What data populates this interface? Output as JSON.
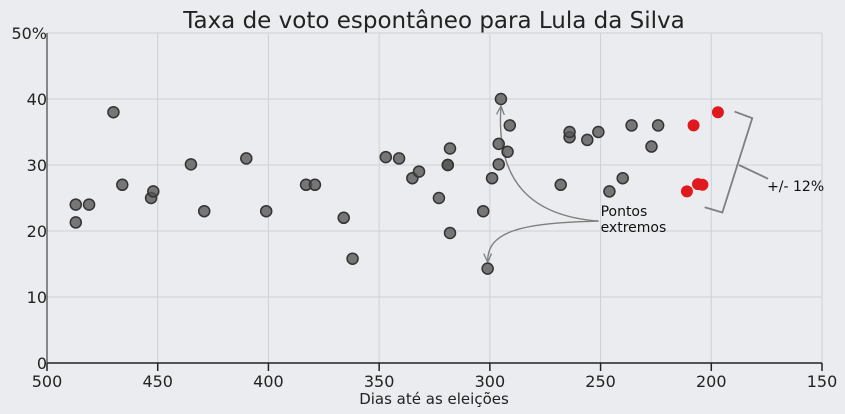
{
  "chart_data": {
    "type": "scatter",
    "title": "Taxa de voto espontâneo para Lula da Silva",
    "xlabel": "Dias até as eleições",
    "ylabel": "",
    "xlim": [
      500,
      150
    ],
    "ylim": [
      0,
      50
    ],
    "x_ticks": [
      500,
      450,
      400,
      350,
      300,
      250,
      200,
      150
    ],
    "x_tick_labels": [
      "500",
      "450",
      "400",
      "350",
      "300",
      "250",
      "200",
      "150"
    ],
    "y_ticks": [
      0,
      10,
      20,
      30,
      40,
      50
    ],
    "y_tick_labels": [
      "0",
      "10",
      "20",
      "30",
      "40",
      "50%"
    ],
    "grid": true,
    "colors": {
      "background": "#ebecf0",
      "points": "#555555",
      "highlight": "#e0191e",
      "annotation": "#7f7f7f"
    },
    "series": [
      {
        "color": "#555555",
        "points": [
          [
            487,
            24
          ],
          [
            487,
            21.3
          ],
          [
            481,
            24
          ],
          [
            470,
            38
          ],
          [
            466,
            27
          ],
          [
            453,
            25
          ],
          [
            452,
            26
          ],
          [
            435,
            30.1
          ],
          [
            429,
            23
          ],
          [
            410,
            31
          ],
          [
            401,
            23
          ],
          [
            383,
            27
          ],
          [
            379,
            27
          ],
          [
            366,
            22
          ],
          [
            362,
            15.8
          ],
          [
            347,
            31.2
          ],
          [
            341,
            31
          ],
          [
            335,
            28
          ],
          [
            332,
            29
          ],
          [
            323,
            25
          ],
          [
            319,
            30
          ],
          [
            319,
            30
          ],
          [
            318,
            19.7
          ],
          [
            318,
            32.5
          ],
          [
            303,
            23
          ],
          [
            301,
            14.3
          ],
          [
            299,
            28
          ],
          [
            296,
            33.2
          ],
          [
            296,
            30.1
          ],
          [
            295,
            40
          ],
          [
            292,
            32
          ],
          [
            291,
            36
          ],
          [
            268,
            27
          ],
          [
            264,
            34.2
          ],
          [
            264,
            35
          ],
          [
            256,
            33.8
          ],
          [
            251,
            35
          ],
          [
            246,
            26
          ],
          [
            240,
            28
          ],
          [
            236,
            36
          ],
          [
            227,
            32.8
          ],
          [
            224,
            36
          ]
        ]
      },
      {
        "color": "#e0191e",
        "points": [
          [
            211,
            26
          ],
          [
            208,
            36
          ],
          [
            206,
            27.1
          ],
          [
            204,
            27
          ],
          [
            197,
            38
          ]
        ]
      }
    ],
    "annotations": [
      {
        "text_lines": [
          "Pontos",
          "extremos"
        ],
        "x": 250,
        "y": 21.5
      },
      {
        "text": "+/- 12%",
        "x": 173,
        "y": 27
      }
    ]
  }
}
